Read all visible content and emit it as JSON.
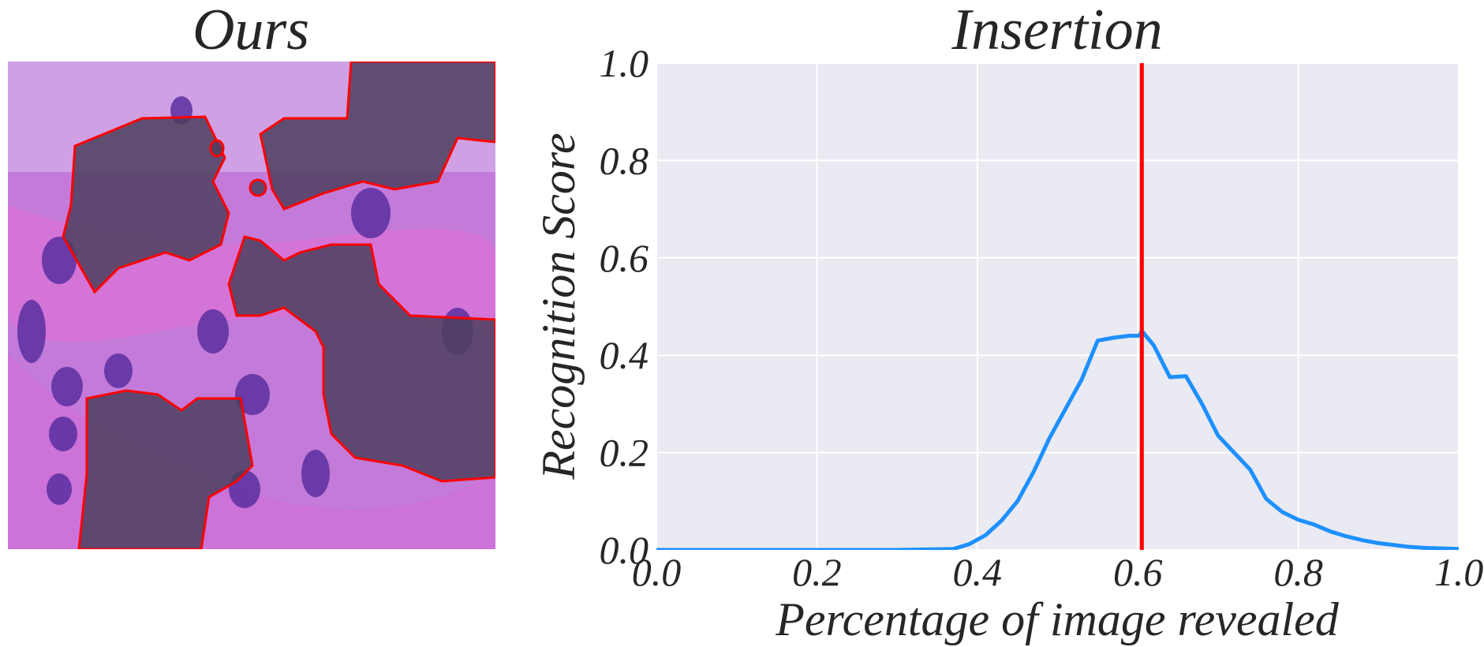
{
  "left_panel": {
    "title": "Ours",
    "image": "histology-tissue-with-highlighted-regions",
    "outline_color": "#ff0000"
  },
  "chart_data": {
    "type": "line",
    "title": "Insertion",
    "xlabel": "Percentage of image revealed",
    "ylabel": "Recognition Score",
    "xlim": [
      0.0,
      1.0
    ],
    "ylim": [
      0.0,
      1.0
    ],
    "xticks": [
      "0.0",
      "0.2",
      "0.4",
      "0.6",
      "0.8",
      "1.0"
    ],
    "yticks": [
      "0.0",
      "0.2",
      "0.4",
      "0.6",
      "0.8",
      "1.0"
    ],
    "grid": true,
    "background": "#eaeaf2",
    "series": [
      {
        "color": "#1e90ff",
        "x": [
          0.0,
          0.1,
          0.2,
          0.3,
          0.37,
          0.39,
          0.41,
          0.43,
          0.45,
          0.47,
          0.49,
          0.51,
          0.53,
          0.55,
          0.57,
          0.59,
          0.602,
          0.605,
          0.62,
          0.64,
          0.66,
          0.68,
          0.7,
          0.72,
          0.74,
          0.76,
          0.78,
          0.8,
          0.82,
          0.84,
          0.86,
          0.88,
          0.9,
          0.92,
          0.94,
          0.96,
          0.98,
          1.0
        ],
        "y": [
          0.0,
          0.0,
          0.0,
          0.0,
          0.002,
          0.012,
          0.03,
          0.06,
          0.1,
          0.16,
          0.23,
          0.29,
          0.35,
          0.43,
          0.436,
          0.44,
          0.44,
          0.45,
          0.42,
          0.355,
          0.357,
          0.3,
          0.235,
          0.2,
          0.165,
          0.105,
          0.078,
          0.062,
          0.052,
          0.038,
          0.028,
          0.02,
          0.014,
          0.01,
          0.006,
          0.004,
          0.003,
          0.002
        ]
      }
    ],
    "vline": {
      "x": 0.605,
      "color": "#ff0000"
    }
  }
}
